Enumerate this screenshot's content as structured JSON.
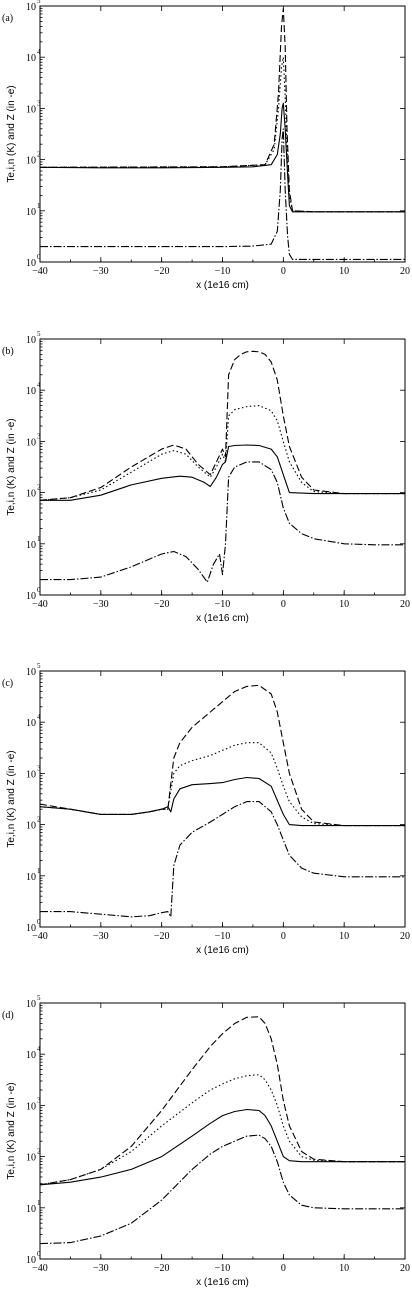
{
  "chart_data": [
    {
      "type": "line",
      "panel_label": "(a)",
      "xlabel": "x (1e16 cm)",
      "ylabel": "Te,i,n (K) and Z (in -e)",
      "xlim": [
        -40,
        20
      ],
      "xticks": [
        "−40",
        "−30",
        "−20",
        "−10",
        "0",
        "10",
        "20"
      ],
      "yscale": "log",
      "ylim_exp": [
        0,
        5
      ],
      "yticks": [
        {
          "base": "10",
          "exp": "0"
        },
        {
          "base": "10",
          "exp": "1"
        },
        {
          "base": "10",
          "exp": "2"
        },
        {
          "base": "10",
          "exp": "3"
        },
        {
          "base": "10",
          "exp": "4"
        },
        {
          "base": "10",
          "exp": "5"
        }
      ],
      "series": [
        {
          "style": "solid",
          "x": [
            -40,
            -30,
            -20,
            -10,
            -5,
            -2,
            -1,
            -0.5,
            -0.2,
            0,
            0.3,
            0.7,
            1,
            1.5,
            5,
            10,
            15,
            20
          ],
          "log10y": [
            1.85,
            1.84,
            1.84,
            1.85,
            1.86,
            1.9,
            2.1,
            2.5,
            3.0,
            3.1,
            2.6,
            1.7,
            1.1,
            0.98,
            0.98,
            0.98,
            0.98,
            0.98
          ]
        },
        {
          "style": "dashdot",
          "x": [
            -40,
            -30,
            -20,
            -10,
            -5,
            -2,
            -1,
            -0.5,
            -0.2,
            0,
            0.3,
            0.7,
            1,
            1.5,
            5,
            10,
            20
          ],
          "log10y": [
            0.3,
            0.3,
            0.3,
            0.3,
            0.31,
            0.35,
            0.6,
            1.4,
            2.4,
            2.6,
            1.4,
            0.5,
            0.15,
            0.05,
            0.05,
            0.05,
            0.05
          ]
        },
        {
          "style": "dashed",
          "x": [
            -40,
            -10,
            -3,
            -1.5,
            -0.8,
            -0.3,
            0,
            0.3,
            0.6,
            1,
            1.5,
            5,
            10,
            20
          ],
          "log10y": [
            1.85,
            1.86,
            1.9,
            2.3,
            3.3,
            4.6,
            4.95,
            4.2,
            2.6,
            1.4,
            1.0,
            0.98,
            0.98,
            0.98
          ]
        },
        {
          "style": "dotted",
          "x": [
            -40,
            -10,
            -3,
            -1.5,
            -0.8,
            -0.3,
            0,
            0.3,
            0.6,
            1,
            1.5,
            5,
            10,
            20
          ],
          "log10y": [
            1.85,
            1.86,
            1.9,
            2.2,
            3.0,
            3.8,
            4.0,
            3.2,
            2.2,
            1.3,
            1.0,
            0.98,
            0.98,
            0.98
          ]
        }
      ]
    },
    {
      "type": "line",
      "panel_label": "(b)",
      "xlabel": "x (1e16 cm)",
      "ylabel": "Te,i,n (K) and Z (in -e)",
      "xlim": [
        -40,
        20
      ],
      "xticks": [
        "−40",
        "−30",
        "−20",
        "−10",
        "0",
        "10",
        "20"
      ],
      "yscale": "log",
      "ylim_exp": [
        0,
        5
      ],
      "yticks": [
        {
          "base": "10",
          "exp": "0"
        },
        {
          "base": "10",
          "exp": "1"
        },
        {
          "base": "10",
          "exp": "2"
        },
        {
          "base": "10",
          "exp": "3"
        },
        {
          "base": "10",
          "exp": "4"
        },
        {
          "base": "10",
          "exp": "5"
        }
      ],
      "series": [
        {
          "style": "solid",
          "x": [
            -40,
            -35,
            -30,
            -25,
            -20,
            -17,
            -15,
            -13,
            -12,
            -11,
            -10,
            -9.5,
            -9,
            -8,
            -6,
            -4,
            -2,
            -1,
            0,
            1,
            5,
            10,
            15,
            20
          ],
          "log10y": [
            1.85,
            1.85,
            1.95,
            2.15,
            2.28,
            2.32,
            2.3,
            2.2,
            2.12,
            2.3,
            2.55,
            2.6,
            2.9,
            2.92,
            2.93,
            2.92,
            2.85,
            2.7,
            2.35,
            2.0,
            1.98,
            1.98,
            1.98,
            1.98
          ]
        },
        {
          "style": "dashed",
          "x": [
            -40,
            -35,
            -30,
            -25,
            -20,
            -18,
            -16,
            -14,
            -12,
            -11,
            -10,
            -9.5,
            -9,
            -8,
            -7,
            -6,
            -5,
            -4,
            -3,
            -2,
            -1,
            0,
            1,
            3,
            5,
            10,
            15,
            20
          ],
          "log10y": [
            1.85,
            1.9,
            2.1,
            2.5,
            2.85,
            2.93,
            2.85,
            2.55,
            2.35,
            2.6,
            2.85,
            2.7,
            4.3,
            4.6,
            4.7,
            4.75,
            4.76,
            4.75,
            4.7,
            4.55,
            4.2,
            3.5,
            2.9,
            2.3,
            2.05,
            1.98,
            1.98,
            1.98
          ]
        },
        {
          "style": "dotted",
          "x": [
            -40,
            -35,
            -30,
            -25,
            -20,
            -18,
            -16,
            -14,
            -12,
            -11,
            -10,
            -9.5,
            -9,
            -8,
            -6,
            -4,
            -2,
            -1,
            0,
            1,
            3,
            5,
            10,
            20
          ],
          "log10y": [
            1.85,
            1.9,
            2.05,
            2.4,
            2.75,
            2.82,
            2.75,
            2.5,
            2.3,
            2.5,
            2.75,
            2.6,
            3.5,
            3.62,
            3.68,
            3.7,
            3.6,
            3.4,
            3.0,
            2.6,
            2.2,
            2.02,
            1.98,
            1.98
          ]
        },
        {
          "style": "dashdot",
          "x": [
            -40,
            -35,
            -30,
            -25,
            -20,
            -18,
            -16,
            -14,
            -12.5,
            -11.5,
            -10.5,
            -10,
            -9.5,
            -9,
            -8,
            -6,
            -4,
            -2,
            -1,
            0,
            1,
            3,
            5,
            10,
            15,
            20
          ],
          "log10y": [
            0.3,
            0.3,
            0.35,
            0.55,
            0.8,
            0.85,
            0.75,
            0.5,
            0.25,
            0.6,
            0.8,
            0.4,
            1.0,
            2.3,
            2.5,
            2.6,
            2.6,
            2.45,
            2.2,
            1.7,
            1.4,
            1.2,
            1.1,
            1.0,
            0.98,
            0.98
          ]
        }
      ]
    },
    {
      "type": "line",
      "panel_label": "(c)",
      "xlabel": "x (1e16 cm)",
      "ylabel": "Te,i,n (K) and Z (in -e)",
      "xlim": [
        -40,
        20
      ],
      "xticks": [
        "−40",
        "−30",
        "−20",
        "−10",
        "0",
        "10",
        "20"
      ],
      "yscale": "log",
      "ylim_exp": [
        0,
        5
      ],
      "yticks": [
        {
          "base": "10",
          "exp": "0"
        },
        {
          "base": "10",
          "exp": "1"
        },
        {
          "base": "10",
          "exp": "2"
        },
        {
          "base": "10",
          "exp": "3"
        },
        {
          "base": "10",
          "exp": "4"
        },
        {
          "base": "10",
          "exp": "5"
        }
      ],
      "series": [
        {
          "style": "solid",
          "x": [
            -40,
            -35,
            -30,
            -25,
            -22,
            -20,
            -19,
            -18.5,
            -18,
            -17,
            -15,
            -12,
            -10,
            -8,
            -6,
            -4,
            -2,
            0,
            1,
            3,
            5,
            10,
            15,
            20
          ],
          "log10y": [
            2.35,
            2.3,
            2.2,
            2.2,
            2.25,
            2.3,
            2.35,
            2.25,
            2.5,
            2.7,
            2.78,
            2.8,
            2.82,
            2.88,
            2.92,
            2.9,
            2.75,
            2.2,
            2.0,
            1.98,
            1.98,
            1.98,
            1.98,
            1.98
          ]
        },
        {
          "style": "dashed",
          "x": [
            -40,
            -35,
            -30,
            -25,
            -22,
            -20,
            -19,
            -18,
            -17,
            -15,
            -12,
            -10,
            -8,
            -6,
            -4,
            -2,
            -1,
            0,
            1,
            3,
            5,
            10,
            15,
            20
          ],
          "log10y": [
            2.4,
            2.3,
            2.2,
            2.2,
            2.25,
            2.3,
            2.3,
            3.3,
            3.6,
            3.9,
            4.2,
            4.4,
            4.6,
            4.7,
            4.72,
            4.55,
            4.2,
            3.6,
            3.0,
            2.3,
            2.05,
            1.98,
            1.98,
            1.98
          ]
        },
        {
          "style": "dotted",
          "x": [
            -40,
            -35,
            -30,
            -25,
            -22,
            -20,
            -19,
            -18,
            -17,
            -15,
            -12,
            -10,
            -8,
            -6,
            -4,
            -2,
            -1,
            0,
            1,
            3,
            5,
            10,
            20
          ],
          "log10y": [
            2.35,
            2.3,
            2.2,
            2.2,
            2.25,
            2.3,
            2.3,
            3.0,
            3.15,
            3.25,
            3.35,
            3.45,
            3.55,
            3.6,
            3.6,
            3.4,
            3.1,
            2.75,
            2.45,
            2.15,
            2.02,
            1.98,
            1.98
          ]
        },
        {
          "style": "dashdot",
          "x": [
            -40,
            -35,
            -30,
            -25,
            -22,
            -20,
            -19,
            -18.5,
            -18,
            -17,
            -15,
            -12,
            -10,
            -8,
            -6,
            -4,
            -2,
            -1,
            0,
            1,
            3,
            5,
            10,
            15,
            20
          ],
          "log10y": [
            0.3,
            0.3,
            0.25,
            0.2,
            0.22,
            0.28,
            0.3,
            0.2,
            1.2,
            1.6,
            1.85,
            2.05,
            2.2,
            2.35,
            2.45,
            2.45,
            2.25,
            2.0,
            1.7,
            1.4,
            1.15,
            1.05,
            0.98,
            0.98,
            0.98
          ]
        }
      ]
    },
    {
      "type": "line",
      "panel_label": "(d)",
      "xlabel": "x (1e16 cm)",
      "ylabel": "Te,i,n (K) and Z (in -e)",
      "xlim": [
        -40,
        20
      ],
      "xticks": [
        "−40",
        "−30",
        "−20",
        "−10",
        "0",
        "10",
        "20"
      ],
      "yscale": "log",
      "ylim_exp": [
        0,
        5
      ],
      "yticks": [
        {
          "base": "10",
          "exp": "0"
        },
        {
          "base": "10",
          "exp": "1"
        },
        {
          "base": "10",
          "exp": "2"
        },
        {
          "base": "10",
          "exp": "3"
        },
        {
          "base": "10",
          "exp": "4"
        },
        {
          "base": "10",
          "exp": "5"
        }
      ],
      "series": [
        {
          "style": "solid",
          "x": [
            -40,
            -35,
            -30,
            -25,
            -20,
            -15,
            -12,
            -10,
            -8,
            -6,
            -4,
            -3,
            -2,
            -1,
            0,
            1,
            3,
            5,
            10,
            15,
            20
          ],
          "log10y": [
            1.45,
            1.5,
            1.6,
            1.75,
            2.0,
            2.4,
            2.65,
            2.8,
            2.88,
            2.92,
            2.9,
            2.8,
            2.6,
            2.3,
            2.0,
            1.92,
            1.9,
            1.9,
            1.9,
            1.9,
            1.9
          ]
        },
        {
          "style": "dashed",
          "x": [
            -40,
            -35,
            -30,
            -25,
            -20,
            -15,
            -12,
            -10,
            -8,
            -6,
            -4,
            -3,
            -2,
            -1,
            0,
            1,
            3,
            5,
            10,
            20
          ],
          "log10y": [
            1.45,
            1.55,
            1.75,
            2.2,
            2.9,
            3.7,
            4.15,
            4.4,
            4.6,
            4.72,
            4.73,
            4.6,
            4.3,
            3.8,
            3.1,
            2.6,
            2.1,
            1.95,
            1.9,
            1.9
          ]
        },
        {
          "style": "dotted",
          "x": [
            -40,
            -35,
            -30,
            -25,
            -20,
            -15,
            -12,
            -10,
            -8,
            -6,
            -4,
            -3,
            -2,
            -1,
            0,
            1,
            3,
            5,
            10,
            20
          ],
          "log10y": [
            1.45,
            1.55,
            1.75,
            2.1,
            2.6,
            3.05,
            3.3,
            3.42,
            3.52,
            3.58,
            3.6,
            3.5,
            3.3,
            3.0,
            2.6,
            2.3,
            2.0,
            1.93,
            1.9,
            1.9
          ]
        },
        {
          "style": "dashdot",
          "x": [
            -40,
            -35,
            -30,
            -25,
            -20,
            -15,
            -12,
            -10,
            -8,
            -6,
            -4,
            -3,
            -2,
            -1,
            0,
            1,
            3,
            5,
            10,
            15,
            20
          ],
          "log10y": [
            0.3,
            0.32,
            0.45,
            0.7,
            1.15,
            1.75,
            2.05,
            2.2,
            2.3,
            2.4,
            2.42,
            2.35,
            2.2,
            1.9,
            1.5,
            1.25,
            1.05,
            1.0,
            0.98,
            0.98,
            0.98
          ]
        }
      ]
    }
  ]
}
